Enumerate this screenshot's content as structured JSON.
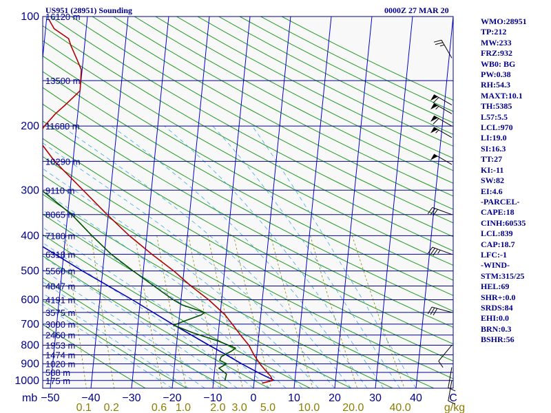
{
  "header": {
    "station": "US951 (28951) Sounding",
    "time": "0000Z 27 MAR 20"
  },
  "indices": [
    "WMO:28951",
    "TP:212",
    "MW:233",
    "FRZ:932",
    "WB0: BG",
    "PW:0.38",
    "RH:54.3",
    "MAXT:10.1",
    "TH:5385",
    "L57:5.5",
    "LCL:970",
    "LI:19.0",
    "SI:16.3",
    "TT:27",
    "KI:-11",
    "SW:82",
    "EI:4.6",
    "-PARCEL-",
    "CAPE:18",
    "CINH:60535",
    "LCL:839",
    "CAP:18.7",
    "LFC:-1",
    "-WIND-",
    "STM:315/25",
    "HEL:69",
    "SHR+:0.0",
    "SRDS:84",
    "EHI:0.0",
    "BRN:0.3",
    "BSHR:56"
  ],
  "colors": {
    "isobar": "#00008b",
    "isotherm": "#0000cd",
    "dry_adiabat": "#1e9a1e",
    "moist_adiabat": "#3aa8e8",
    "mixing_ratio": "#8b8b00",
    "temperature": "#b00000",
    "dewpoint": "#004d00",
    "parcel": "#0000b4"
  },
  "chart_data": {
    "type": "line",
    "chart_kind": "skew-T log-P sounding",
    "p_axis_label": "mb",
    "mixing_ratio_unit": "g/kg",
    "pressure_levels": [
      100,
      200,
      300,
      400,
      500,
      600,
      700,
      800,
      900,
      1000
    ],
    "pressure_range": [
      100,
      1050
    ],
    "temperature_ticks": [
      -50,
      -40,
      -30,
      -20,
      -10,
      0,
      10,
      20,
      30,
      40
    ],
    "temperature_end_label": "C",
    "height_labels": [
      {
        "p": 100,
        "label": "16120 m"
      },
      {
        "p": 150,
        "label": "13500 m"
      },
      {
        "p": 200,
        "label": "11680 m"
      },
      {
        "p": 250,
        "label": "10290 m"
      },
      {
        "p": 300,
        "label": "9110 m"
      },
      {
        "p": 350,
        "label": "8065 m"
      },
      {
        "p": 400,
        "label": "7180 m"
      },
      {
        "p": 450,
        "label": "6318 m"
      },
      {
        "p": 500,
        "label": "5560 m"
      },
      {
        "p": 550,
        "label": "4847 m"
      },
      {
        "p": 600,
        "label": "4191 m"
      },
      {
        "p": 650,
        "label": "3575 m"
      },
      {
        "p": 700,
        "label": "3000 m"
      },
      {
        "p": 750,
        "label": "2460 m"
      },
      {
        "p": 800,
        "label": "1953 m"
      },
      {
        "p": 850,
        "label": "1474 m"
      },
      {
        "p": 900,
        "label": "1020 m"
      },
      {
        "p": 950,
        "label": "588 m"
      },
      {
        "p": 1000,
        "label": "175 m"
      }
    ],
    "mixing_ratio_labels": [
      "0.1",
      "0.2",
      "0.6",
      "1.0",
      "2.0",
      "3.0",
      "5.0",
      "10.0",
      "20.0",
      "40.0"
    ],
    "temperature_profile": [
      {
        "p": 1017,
        "t": 2.0
      },
      {
        "p": 1000,
        "t": 4.5
      },
      {
        "p": 975,
        "t": 4.0
      },
      {
        "p": 950,
        "t": 3.0
      },
      {
        "p": 925,
        "t": 2.0
      },
      {
        "p": 900,
        "t": 1.0
      },
      {
        "p": 850,
        "t": -0.7
      },
      {
        "p": 800,
        "t": -2.2
      },
      {
        "p": 750,
        "t": -4.5
      },
      {
        "p": 700,
        "t": -6.8
      },
      {
        "p": 660,
        "t": -8.8
      },
      {
        "p": 600,
        "t": -13.2
      },
      {
        "p": 550,
        "t": -17.9
      },
      {
        "p": 500,
        "t": -22.5
      },
      {
        "p": 450,
        "t": -28.3
      },
      {
        "p": 400,
        "t": -34.3
      },
      {
        "p": 350,
        "t": -40.3
      },
      {
        "p": 300,
        "t": -46.8
      },
      {
        "p": 250,
        "t": -54.5
      },
      {
        "p": 215,
        "t": -59.5
      },
      {
        "p": 200,
        "t": -57.9
      },
      {
        "p": 185,
        "t": -55.5
      },
      {
        "p": 175,
        "t": -53.3
      },
      {
        "p": 160,
        "t": -50.0
      },
      {
        "p": 140,
        "t": -50.2
      },
      {
        "p": 130,
        "t": -51.7
      },
      {
        "p": 120,
        "t": -53.4
      },
      {
        "p": 115,
        "t": -54.1
      },
      {
        "p": 108,
        "t": -57.9
      },
      {
        "p": 102,
        "t": -59.4
      }
    ],
    "dewpoint_profile": [
      {
        "p": 1000,
        "td": -7.2
      },
      {
        "p": 960,
        "td": -7.0
      },
      {
        "p": 925,
        "td": -9.0
      },
      {
        "p": 900,
        "td": -7.2
      },
      {
        "p": 880,
        "td": -9.0
      },
      {
        "p": 860,
        "td": -8.7
      },
      {
        "p": 830,
        "td": -6.3
      },
      {
        "p": 815,
        "td": -5.4
      },
      {
        "p": 780,
        "td": -9.7
      },
      {
        "p": 740,
        "td": -16.2
      },
      {
        "p": 705,
        "td": -21.2
      },
      {
        "p": 690,
        "td": -19.2
      },
      {
        "p": 660,
        "td": -14.6
      },
      {
        "p": 650,
        "td": -13.9
      },
      {
        "p": 620,
        "td": -19.6
      },
      {
        "p": 600,
        "td": -21.9
      },
      {
        "p": 550,
        "td": -27.0
      },
      {
        "p": 500,
        "td": -32.5
      },
      {
        "p": 450,
        "td": -38.3
      },
      {
        "p": 400,
        "td": -43.5
      },
      {
        "p": 350,
        "td": -49.0
      },
      {
        "p": 300,
        "td": -57.0
      },
      {
        "p": 250,
        "td": -64.0
      },
      {
        "p": 220,
        "td": -67.0
      },
      {
        "p": 200,
        "td": -68.0
      },
      {
        "p": 180,
        "td": -67.0
      },
      {
        "p": 170,
        "td": -66.6
      },
      {
        "p": 150,
        "td": -65.1
      },
      {
        "p": 130,
        "td": -66.1
      },
      {
        "p": 115,
        "td": -66.2
      },
      {
        "p": 105,
        "td": -63.3
      },
      {
        "p": 100,
        "td": -63.8
      }
    ],
    "parcel_profile": [
      {
        "p": 1000,
        "t": 5.0
      },
      {
        "p": 960,
        "t": 1.5
      },
      {
        "p": 900,
        "t": -3.5
      },
      {
        "p": 850,
        "t": -7.5
      },
      {
        "p": 800,
        "t": -12.0
      },
      {
        "p": 700,
        "t": -21.5
      },
      {
        "p": 600,
        "t": -32.0
      },
      {
        "p": 500,
        "t": -45.0
      },
      {
        "p": 400,
        "t": -60.0
      },
      {
        "p": 300,
        "t": -78.0
      },
      {
        "p": 200,
        "t": -104.5
      },
      {
        "p": 150,
        "t": -120.0
      },
      {
        "p": 100,
        "t": -141.5
      }
    ],
    "wind_barbs": [
      {
        "p": 130,
        "dir": 330,
        "kt": 25
      },
      {
        "p": 175,
        "dir": 300,
        "kt": 60
      },
      {
        "p": 185,
        "dir": 300,
        "kt": 55
      },
      {
        "p": 200,
        "dir": 300,
        "kt": 60
      },
      {
        "p": 215,
        "dir": 300,
        "kt": 55
      },
      {
        "p": 255,
        "dir": 300,
        "kt": 50
      },
      {
        "p": 350,
        "dir": 290,
        "kt": 30
      },
      {
        "p": 450,
        "dir": 290,
        "kt": 35
      },
      {
        "p": 650,
        "dir": 285,
        "kt": 30
      },
      {
        "p": 800,
        "dir": 220,
        "kt": 10
      },
      {
        "p": 920,
        "dir": 190,
        "kt": 10
      },
      {
        "p": 1000,
        "dir": 190,
        "kt": 10
      }
    ]
  }
}
